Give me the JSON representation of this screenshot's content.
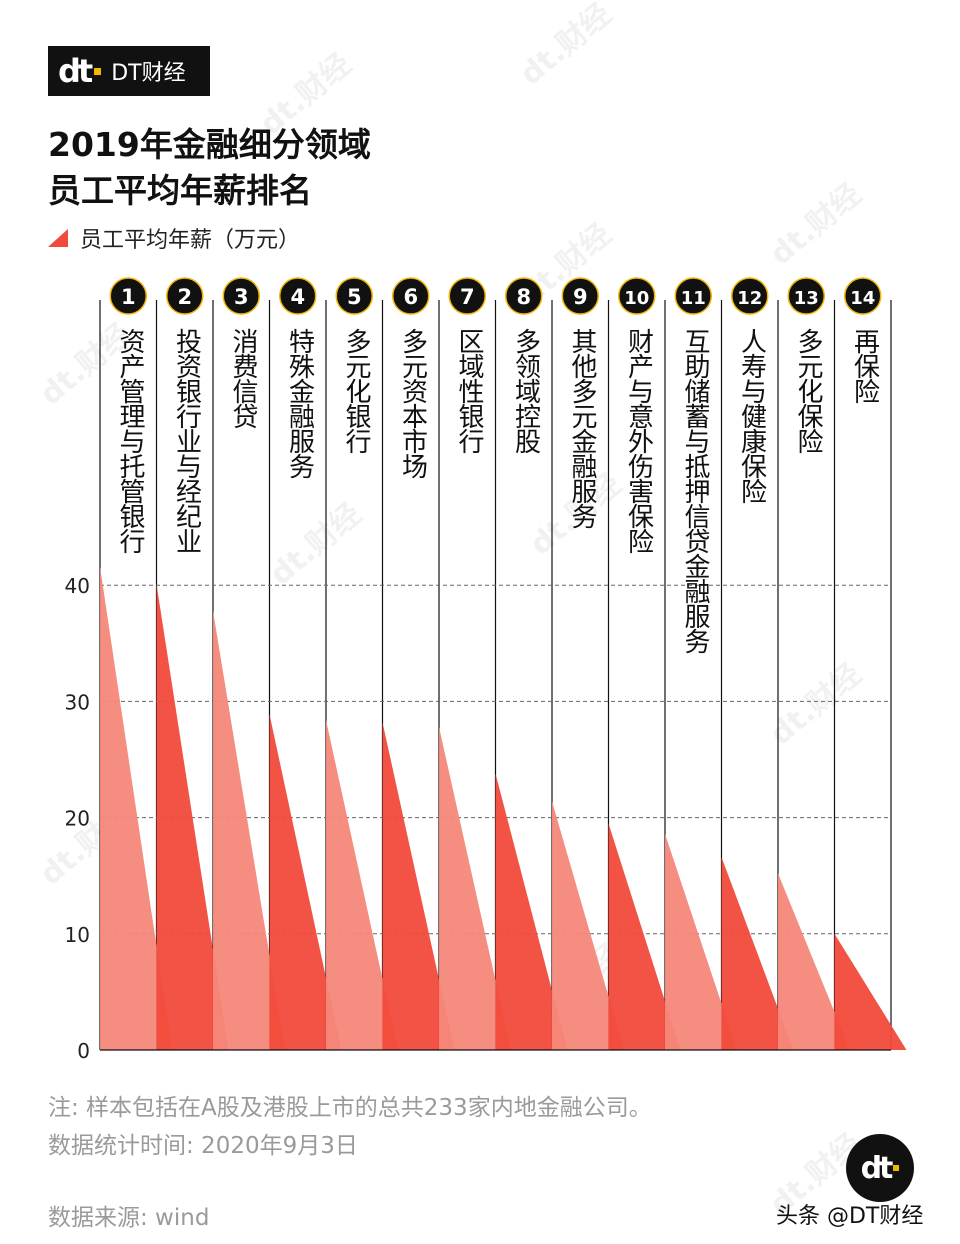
{
  "brand": {
    "logo_mark": "dt",
    "name": "DT财经"
  },
  "title_lines": [
    "2019年金融细分领域",
    "员工平均年薪排名"
  ],
  "legend": {
    "label": "员工平均年薪（万元）",
    "color": "#f24a3a"
  },
  "chart_data": {
    "type": "bar",
    "categories": [
      "资产管理与托管银行",
      "投资银行业与经纪业",
      "消费信贷",
      "特殊金融服务",
      "多元化银行",
      "多元资本市场",
      "区域性银行",
      "多领域控股",
      "其他多元金融服务",
      "财产与意外伤害保险",
      "互助储蓄与抵押信贷金融服务",
      "人寿与健康保险",
      "多元化保险",
      "再保险"
    ],
    "ranks": [
      "1",
      "2",
      "3",
      "4",
      "5",
      "6",
      "7",
      "8",
      "9",
      "10",
      "11",
      "12",
      "13",
      "14"
    ],
    "values": [
      41.6,
      40.1,
      37.8,
      28.9,
      28.4,
      28.2,
      27.8,
      23.8,
      21.4,
      19.5,
      18.6,
      16.6,
      15.2,
      10.0
    ],
    "yticks": [
      0,
      10,
      20,
      30,
      40
    ],
    "ylim": [
      0,
      42
    ],
    "colors": {
      "dark": "#f24a3a",
      "light": "#f6877a"
    },
    "grid": true
  },
  "notes": {
    "sample": "注: 样本包括在A股及港股上市的总共233家内地金融公司。",
    "time": "数据统计时间: 2020年9月3日",
    "source": "数据来源: wind"
  },
  "credit": "头条 @DT财经"
}
